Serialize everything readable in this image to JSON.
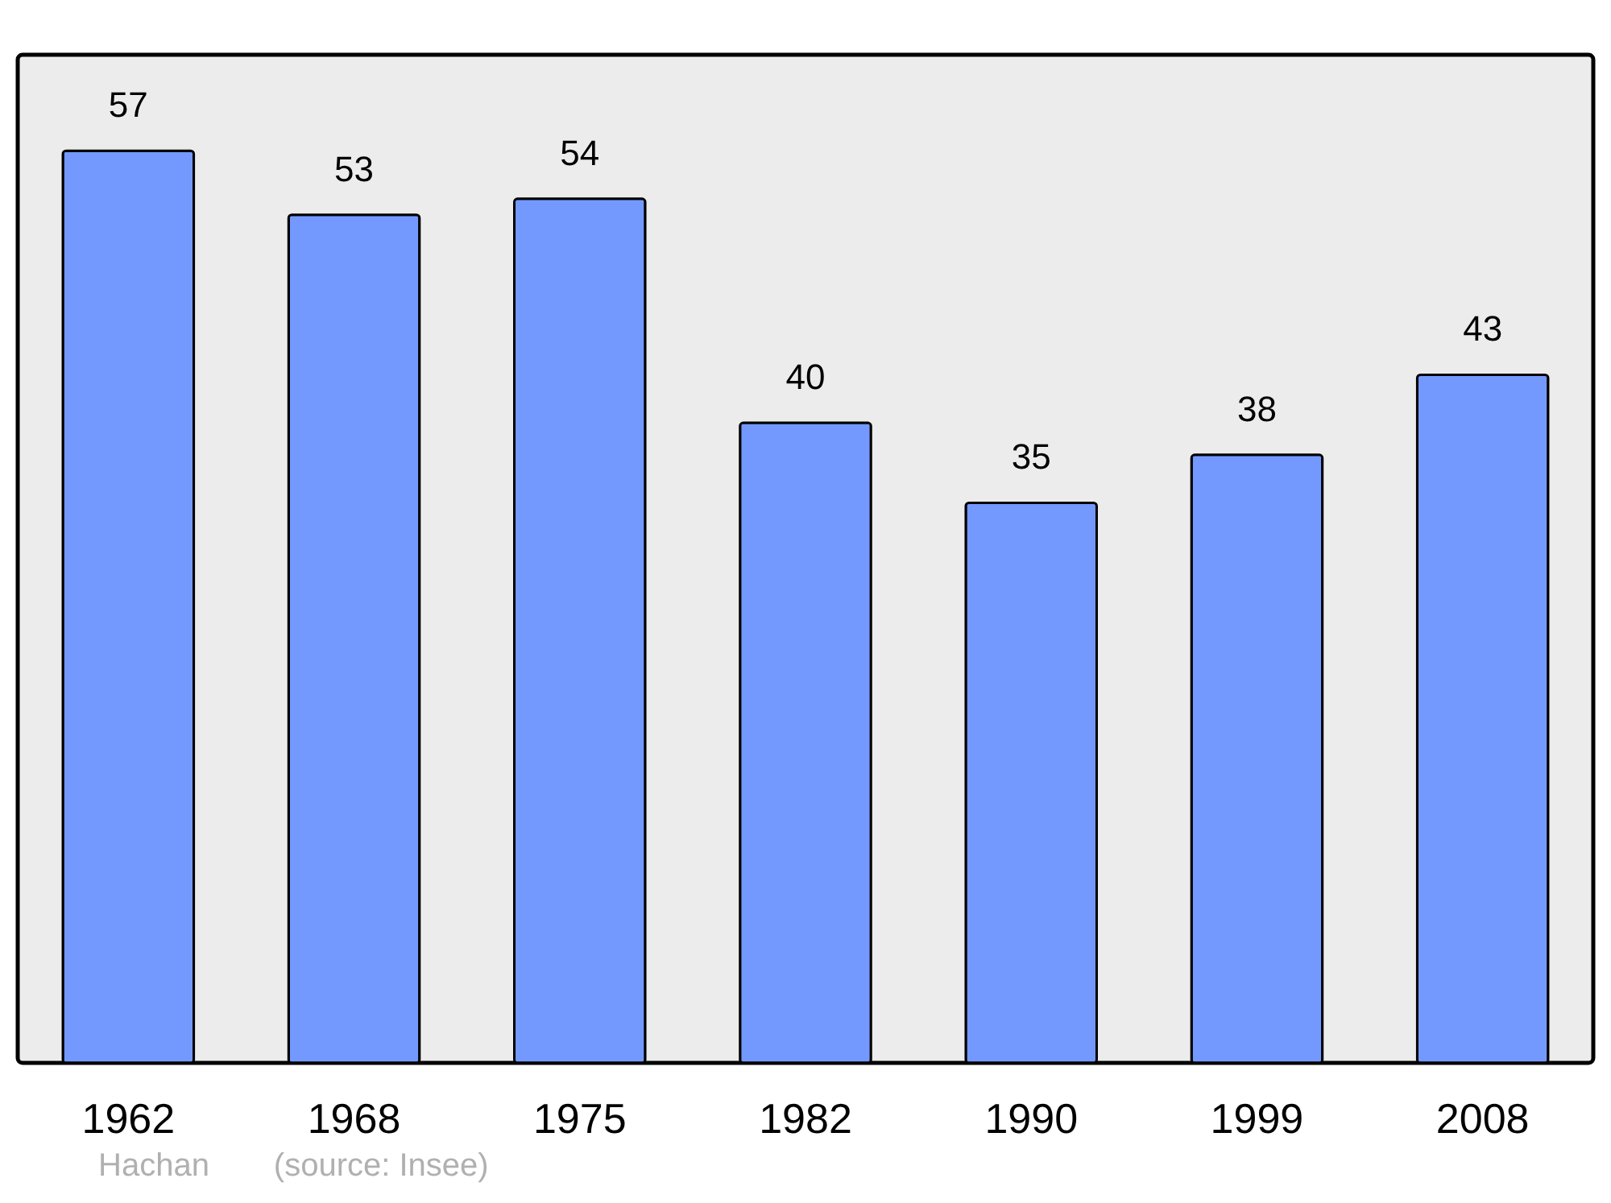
{
  "chart_data": {
    "type": "bar",
    "categories": [
      "1962",
      "1968",
      "1975",
      "1982",
      "1990",
      "1999",
      "2008"
    ],
    "values": [
      57,
      53,
      54,
      40,
      35,
      38,
      43
    ],
    "color": "#7399ff",
    "ylim": [
      0,
      63
    ],
    "tick_labels": "x",
    "grid": false,
    "data_labels": true,
    "annotations": [
      "Hachan",
      "(source: Insee)"
    ]
  }
}
